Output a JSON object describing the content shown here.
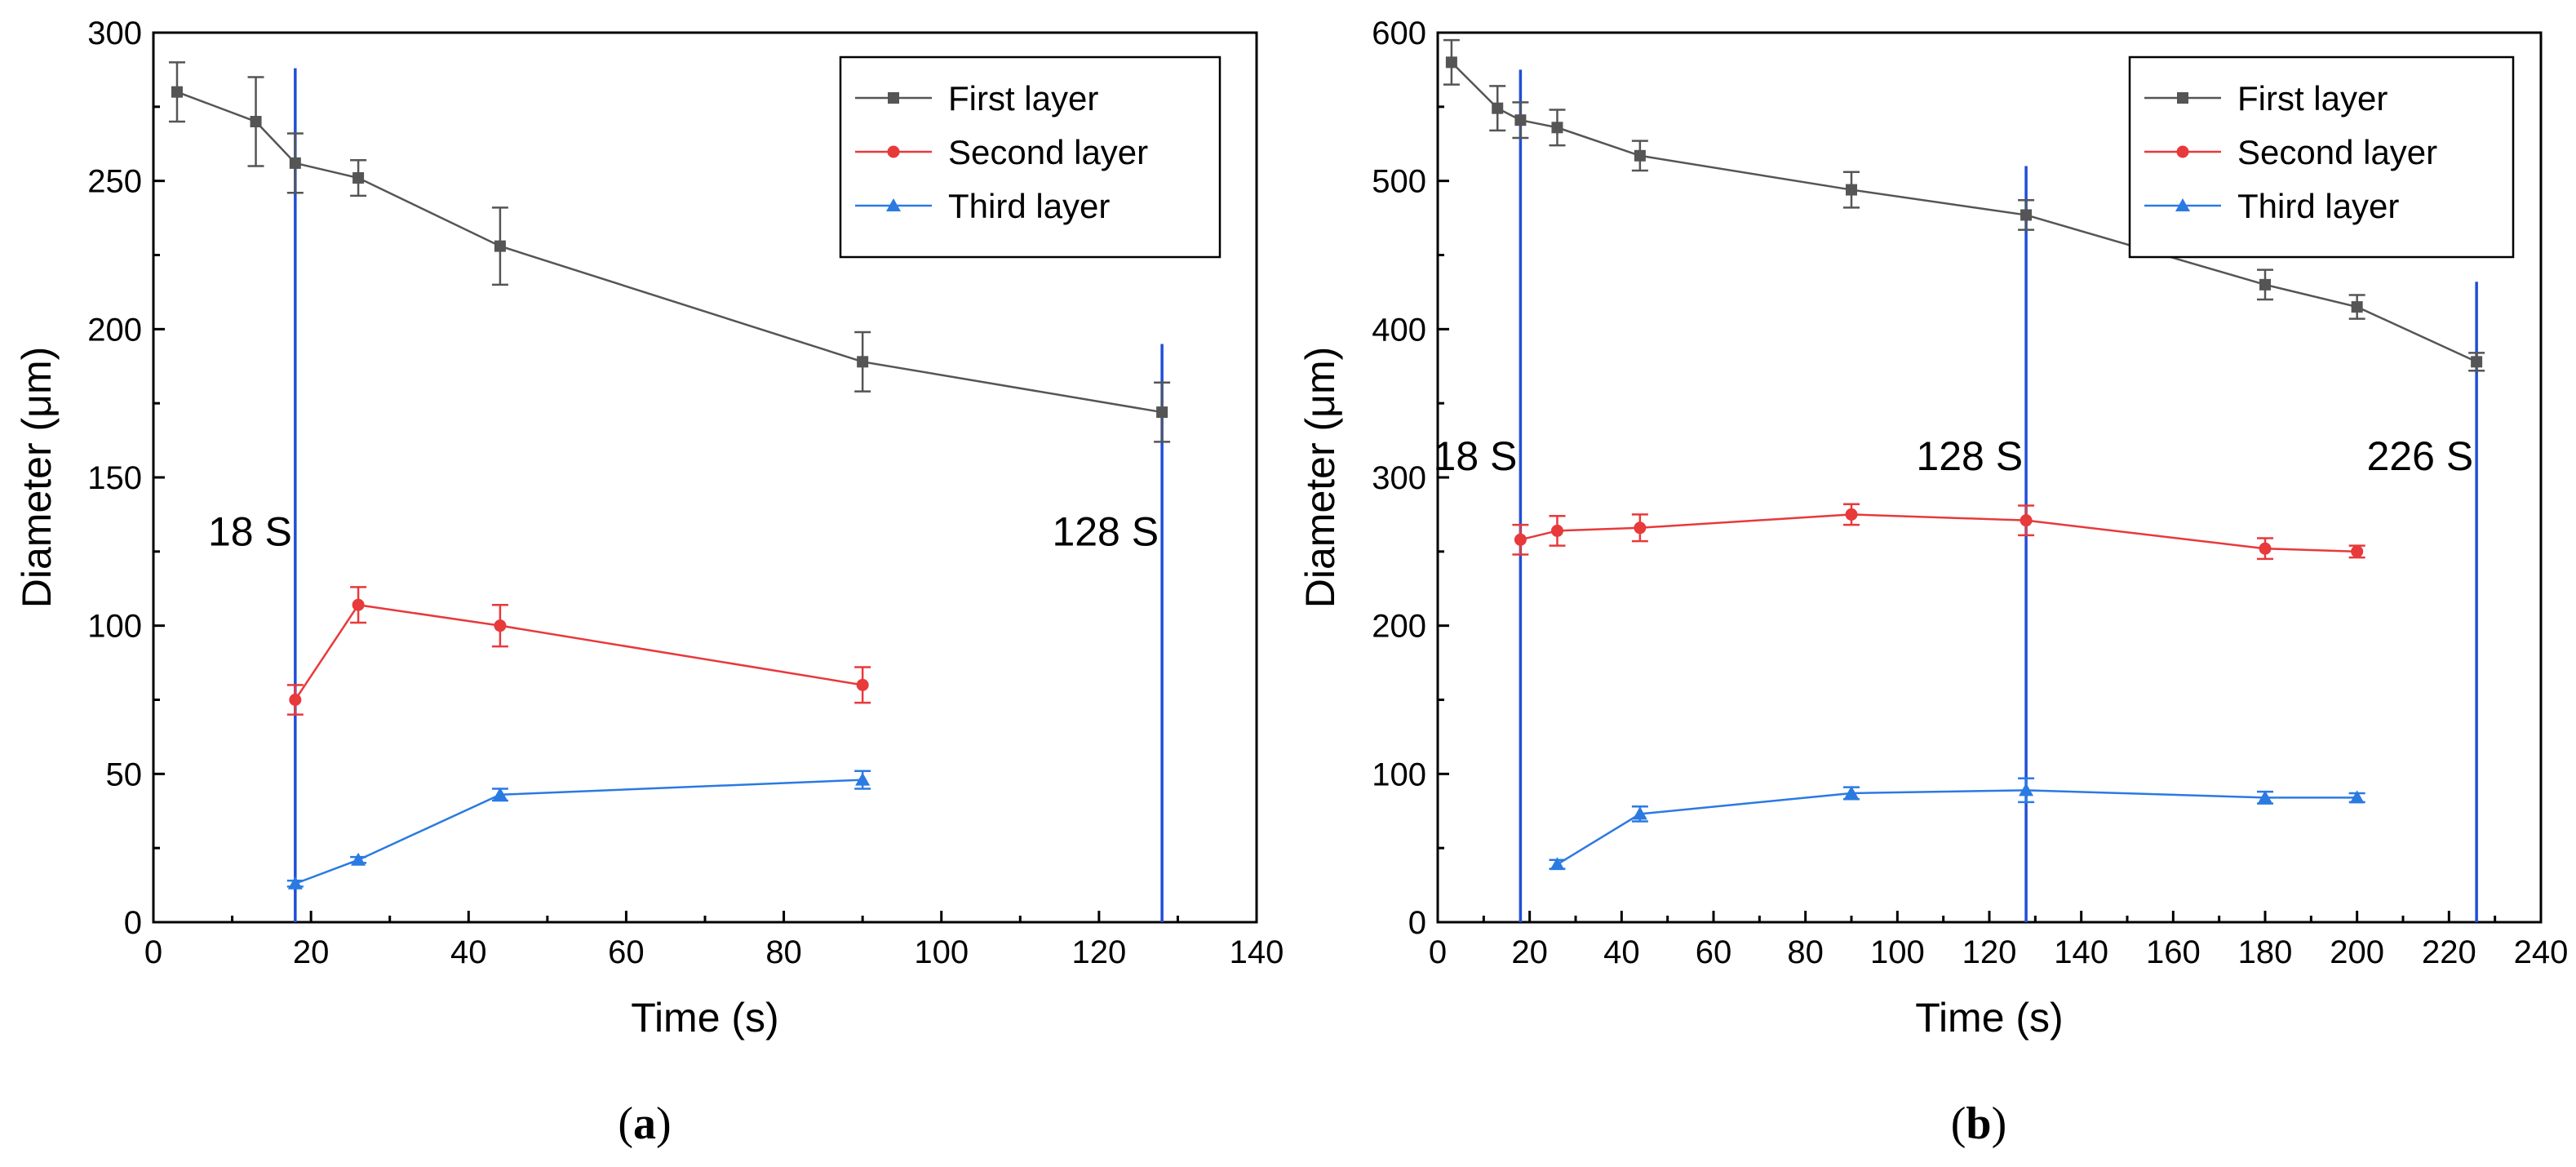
{
  "chart_data": [
    {
      "id": "a",
      "type": "line",
      "panel_label": "a",
      "xlabel": "Time (s)",
      "ylabel": "Diameter (μm)",
      "xlim": [
        0,
        140
      ],
      "ylim": [
        0,
        300
      ],
      "xticks": [
        0,
        20,
        40,
        60,
        80,
        100,
        120,
        140
      ],
      "yticks": [
        0,
        50,
        100,
        150,
        200,
        250,
        300
      ],
      "legend_position": "top-right",
      "series": [
        {
          "name": "First layer",
          "color": "#555555",
          "marker": "square",
          "x": [
            3,
            13,
            18,
            26,
            44,
            90,
            128
          ],
          "y": [
            280,
            270,
            256,
            251,
            228,
            189,
            172
          ],
          "err": [
            10,
            15,
            10,
            6,
            13,
            10,
            10
          ]
        },
        {
          "name": "Second layer",
          "color": "#e8393b",
          "marker": "circle",
          "x": [
            18,
            26,
            44,
            90
          ],
          "y": [
            75,
            107,
            100,
            80
          ],
          "err": [
            5,
            6,
            7,
            6
          ]
        },
        {
          "name": "Third layer",
          "color": "#2a7ae2",
          "marker": "triangle",
          "x": [
            18,
            26,
            44,
            90
          ],
          "y": [
            13,
            21,
            43,
            48
          ],
          "err": [
            1,
            1,
            2,
            3
          ]
        }
      ],
      "annotations": [
        {
          "text": "18 S",
          "x": 18,
          "line_top": 288,
          "label_y": 132,
          "label_side": "left"
        },
        {
          "text": "128 S",
          "x": 128,
          "line_top": 195,
          "label_y": 132,
          "label_side": "left"
        }
      ]
    },
    {
      "id": "b",
      "type": "line",
      "panel_label": "b",
      "xlabel": "Time (s)",
      "ylabel": "Diameter (μm)",
      "xlim": [
        0,
        240
      ],
      "ylim": [
        0,
        600
      ],
      "xticks": [
        0,
        20,
        40,
        60,
        80,
        100,
        120,
        140,
        160,
        180,
        200,
        220,
        240
      ],
      "yticks": [
        0,
        100,
        200,
        300,
        400,
        500,
        600
      ],
      "legend_position": "top-right",
      "series": [
        {
          "name": "First layer",
          "color": "#555555",
          "marker": "square",
          "x": [
            3,
            13,
            18,
            26,
            44,
            90,
            128,
            180,
            200,
            226
          ],
          "y": [
            580,
            549,
            541,
            536,
            517,
            494,
            477,
            430,
            415,
            378
          ],
          "err": [
            15,
            15,
            12,
            12,
            10,
            12,
            10,
            10,
            8,
            6
          ]
        },
        {
          "name": "Second layer",
          "color": "#e8393b",
          "marker": "circle",
          "x": [
            18,
            26,
            44,
            90,
            128,
            180,
            200
          ],
          "y": [
            258,
            264,
            266,
            275,
            271,
            252,
            250
          ],
          "err": [
            10,
            10,
            9,
            7,
            10,
            7,
            4
          ]
        },
        {
          "name": "Third layer",
          "color": "#2a7ae2",
          "marker": "triangle",
          "x": [
            26,
            44,
            90,
            128,
            180,
            200
          ],
          "y": [
            39,
            73,
            87,
            89,
            84,
            84
          ],
          "err": [
            3,
            5,
            4,
            8,
            4,
            3
          ]
        }
      ],
      "annotations": [
        {
          "text": "18 S",
          "x": 18,
          "line_top": 575,
          "label_y": 315,
          "label_side": "left"
        },
        {
          "text": "128 S",
          "x": 128,
          "line_top": 510,
          "label_y": 315,
          "label_side": "left"
        },
        {
          "text": "226 S",
          "x": 226,
          "line_top": 432,
          "label_y": 315,
          "label_side": "left"
        }
      ]
    }
  ]
}
